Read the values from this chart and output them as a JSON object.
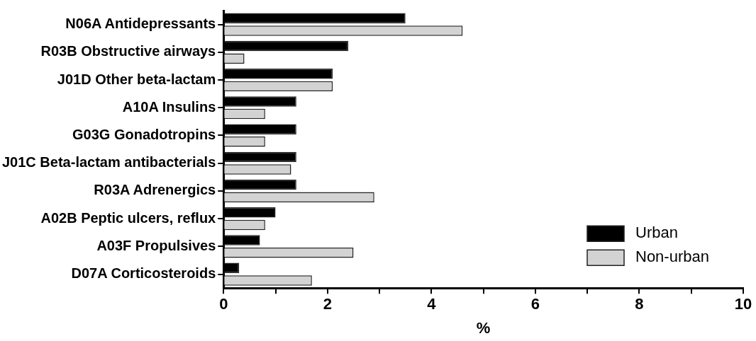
{
  "chart_data": {
    "type": "bar",
    "orientation": "horizontal",
    "xlabel": "%",
    "categories": [
      "N06A Antidepressants",
      "R03B Obstructive airways",
      "J01D Other beta-lactam",
      "A10A Insulins",
      "G03G Gonadotropins",
      "J01C Beta-lactam antibacterials",
      "R03A Adrenergics",
      "A02B Peptic ulcers, reflux",
      "A03F Propulsives",
      "D07A Corticosteroids"
    ],
    "series": [
      {
        "name": "Urban",
        "color": "#000000",
        "values": [
          3.5,
          2.4,
          2.1,
          1.4,
          1.4,
          1.4,
          1.4,
          1.0,
          0.7,
          0.3
        ]
      },
      {
        "name": "Non-urban",
        "color": "#d3d3d3",
        "values": [
          4.6,
          0.4,
          2.1,
          0.8,
          0.8,
          1.3,
          2.9,
          0.8,
          2.5,
          1.7
        ]
      }
    ],
    "xlim": [
      0,
      10
    ],
    "xticks": [
      0,
      {
        "value": 1,
        "label": null
      },
      2,
      {
        "value": 3,
        "label": null
      },
      4,
      {
        "value": 5,
        "label": null
      },
      6,
      {
        "value": 7,
        "label": null
      },
      8,
      {
        "value": 9,
        "label": null
      },
      10
    ],
    "grid": false,
    "legend": "bottom right"
  }
}
